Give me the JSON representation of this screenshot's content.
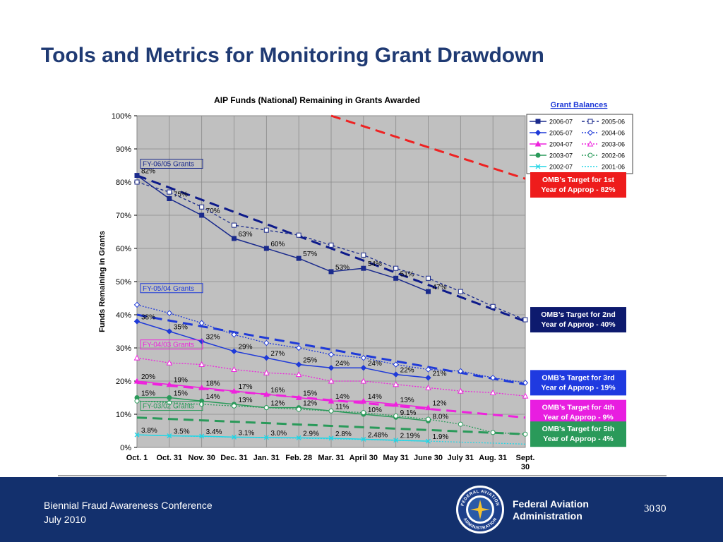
{
  "slide": {
    "title": "Tools and Metrics for Monitoring Grant Drawdown",
    "footer": {
      "conference": "Biennial Fraud Awareness Conference",
      "date": "July 2010",
      "org_line1": "Federal Aviation",
      "org_line2": "Administration",
      "page_number": "30",
      "page_number_small": "30",
      "seal_text_top": "FEDERAL AVIATION",
      "seal_text_bottom": "ADMINISTRATION"
    }
  },
  "chart_data": {
    "type": "line",
    "title": "AIP Funds (National) Remaining in Grants Awarded",
    "xlabel": "",
    "ylabel": "Funds Remaining in Grants",
    "ylim": [
      0,
      100
    ],
    "y_ticks": [
      0,
      10,
      20,
      30,
      40,
      50,
      60,
      70,
      80,
      90,
      100
    ],
    "y_tick_labels": [
      "0%",
      "10%",
      "20%",
      "30%",
      "40%",
      "50%",
      "60%",
      "70%",
      "80%",
      "90%",
      "100%"
    ],
    "categories": [
      "Oct. 1",
      "Oct. 31",
      "Nov. 30",
      "Dec. 31",
      "Jan. 31",
      "Feb. 28",
      "Mar. 31",
      "April 30",
      "May 31",
      "June 30",
      "July 31",
      "Aug. 31",
      "Sept. 30"
    ],
    "grid": true,
    "plot_background": "#c0c0c0",
    "legend_title": "Grant Balances",
    "legend_position": "top-right",
    "series": [
      {
        "name": "2006-07",
        "color": "#1a2a8c",
        "style": "solid",
        "marker": "square-filled",
        "values": [
          82,
          75,
          70,
          63,
          60,
          57,
          53,
          54,
          51,
          47,
          null,
          null,
          null
        ],
        "point_labels": [
          "82%",
          "75%",
          "70%",
          "63%",
          "60%",
          "57%",
          "53%",
          "54%",
          "51%",
          "47%"
        ]
      },
      {
        "name": "2005-06",
        "color": "#1a2a8c",
        "style": "dashed",
        "marker": "square-open",
        "values": [
          80,
          77,
          72.5,
          67,
          65.5,
          64,
          61,
          58,
          54,
          51,
          47,
          42.5,
          38.5
        ],
        "point_labels": []
      },
      {
        "name": "2005-07",
        "color": "#1f3ad8",
        "style": "solid",
        "marker": "diamond-filled",
        "values": [
          38,
          35,
          32,
          29,
          27,
          25,
          24,
          24,
          22,
          21,
          null,
          null,
          null
        ],
        "point_labels": [
          "38%",
          "35%",
          "32%",
          "29%",
          "27%",
          "25%",
          "24%",
          "24%",
          "22%",
          "21%"
        ]
      },
      {
        "name": "2004-06",
        "color": "#1f3ad8",
        "style": "dotted",
        "marker": "diamond-open",
        "values": [
          43,
          40.5,
          37.5,
          34,
          31.5,
          30,
          28,
          27,
          25,
          23.5,
          23,
          21,
          19.5
        ],
        "point_labels": []
      },
      {
        "name": "2004-07",
        "color": "#ee22dd",
        "style": "solid",
        "marker": "triangle-filled",
        "values": [
          20,
          19,
          18,
          17,
          16,
          15,
          14,
          14,
          13,
          12,
          null,
          null,
          null
        ],
        "point_labels": [
          "20%",
          "19%",
          "18%",
          "17%",
          "16%",
          "15%",
          "14%",
          "14%",
          "13%",
          "12%"
        ]
      },
      {
        "name": "2003-06",
        "color": "#ee22dd",
        "style": "dotted",
        "marker": "triangle-open",
        "values": [
          27,
          25.5,
          25,
          23.5,
          22.5,
          22,
          20,
          20,
          19,
          18,
          17,
          16.5,
          15.5
        ],
        "point_labels": []
      },
      {
        "name": "2003-07",
        "color": "#2a9a5a",
        "style": "solid",
        "marker": "circle-filled",
        "values": [
          15,
          15,
          14,
          13,
          12,
          12,
          11,
          10,
          9.1,
          8.0,
          null,
          null,
          null
        ],
        "point_labels": [
          "15%",
          "15%",
          "14%",
          "13%",
          "12%",
          "12%",
          "11%",
          "10%",
          "9.1%",
          "8.0%"
        ]
      },
      {
        "name": "2002-06",
        "color": "#2a9a5a",
        "style": "dotted",
        "marker": "circle-open",
        "values": [
          14,
          13.5,
          13,
          12.5,
          12,
          11.5,
          11,
          10.5,
          9.5,
          8.5,
          7,
          4.5,
          4
        ],
        "point_labels": []
      },
      {
        "name": "2002-07",
        "color": "#22d6e6",
        "style": "solid",
        "marker": "x",
        "values": [
          3.8,
          3.5,
          3.4,
          3.1,
          3.0,
          2.9,
          2.8,
          2.48,
          2.19,
          1.9,
          null,
          null,
          null
        ],
        "point_labels": [
          "3.8%",
          "3.5%",
          "3.4%",
          "3.1%",
          "3.0%",
          "2.9%",
          "2.8%",
          "2.48%",
          "2.19%",
          "1.9%"
        ]
      },
      {
        "name": "2001-06",
        "color": "#22d6e6",
        "style": "dotted",
        "marker": "none",
        "values": [
          3.8,
          3.5,
          3.3,
          3.1,
          2.9,
          2.8,
          2.6,
          2.4,
          2.1,
          1.9,
          1.6,
          1.3,
          1.0
        ],
        "point_labels": []
      }
    ],
    "target_lines": [
      {
        "color": "#ee2222",
        "from": [
          6,
          100
        ],
        "to": [
          12,
          81
        ]
      },
      {
        "color": "#0d1a8a",
        "from": [
          0,
          82
        ],
        "to": [
          12,
          38
        ]
      },
      {
        "color": "#1f3ad8",
        "from": [
          0,
          40
        ],
        "to": [
          12,
          19
        ]
      },
      {
        "color": "#ee22dd",
        "from": [
          0,
          19.5
        ],
        "to": [
          12,
          9
        ]
      },
      {
        "color": "#2a9a5a",
        "from": [
          0,
          9
        ],
        "to": [
          12,
          4
        ]
      }
    ],
    "group_labels": [
      {
        "text": "FY-06/05 Grants",
        "color": "#1a2a8c",
        "y": 85
      },
      {
        "text": "FY-05/04 Grants",
        "color": "#1f3ad8",
        "y": 47.5
      },
      {
        "text": "FY-04/03 Grants",
        "color": "#ee22dd",
        "y": 30.5
      },
      {
        "text": "FY-03/02 Grants",
        "color": "#2a9a5a",
        "y": 12
      }
    ],
    "target_annotations": [
      {
        "line1": "OMB’s Target for 1st",
        "line2": "Year of Approp - 82%",
        "bg": "#ee1c1c",
        "y": 80
      },
      {
        "line1": "OMB’s Target for 2nd",
        "line2": "Year of Approp - 40%",
        "bg": "#0d1a6e",
        "y": 38.5
      },
      {
        "line1": "OMB’s Target for 3rd",
        "line2": "Year of Approp - 19%",
        "bg": "#1f3ae0",
        "y": 19.5
      },
      {
        "line1": "OMB’s Target for 4th",
        "line2": "Year of Approp  - 9%",
        "bg": "#e81ee0",
        "y": 10.5
      },
      {
        "line1": "OMB's Target for 5th",
        "line2": "Year of Approp  -  4%",
        "bg": "#2a9a5a",
        "y": 4
      }
    ]
  }
}
